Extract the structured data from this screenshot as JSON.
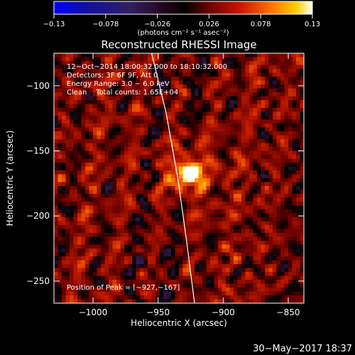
{
  "chart_data": {
    "type": "heatmap",
    "title": "Reconstructed RHESSI Image",
    "xlabel": "Heliocentric X (arcsec)",
    "ylabel": "Heliocentric Y (arcsec)",
    "xlim": [
      -1030,
      -838
    ],
    "ylim": [
      -267,
      -75
    ],
    "x_ticks": [
      -1000,
      -950,
      -900,
      -850
    ],
    "x_tick_labels": [
      "−1000",
      "−950",
      "−900",
      "−850"
    ],
    "y_ticks": [
      -100,
      -150,
      -200,
      -250
    ],
    "y_tick_labels": [
      "−100",
      "−150",
      "−200",
      "−250"
    ],
    "colorbar": {
      "min": -0.13,
      "max": 0.13,
      "ticks": [
        -0.13,
        -0.078,
        -0.026,
        0.026,
        0.078,
        0.13
      ],
      "tick_labels": [
        "−0.13",
        "−0.078",
        "−0.026",
        "0.026",
        "0.078",
        "0.13"
      ],
      "label": "(photons cm⁻² s⁻¹ asec⁻²)",
      "colormap": "rainbow-blue-to-hot"
    },
    "annotations": [
      "12−Oct−2014 18:00:32.000 to 18:10:32.000",
      "Detectors: 3F 6F 9F, Att 0",
      "Energy Range: 3.0 − 6.0 keV",
      "Clean    Total counts: 1.65E+04"
    ],
    "peak_text": "Position of Peak = [−927,−167]",
    "peak": {
      "x": -927,
      "y": -167,
      "value": 0.13
    },
    "limb_curve": [
      [
        -955,
        -75
      ],
      [
        -944,
        -120
      ],
      [
        -935,
        -170
      ],
      [
        -928,
        -220
      ],
      [
        -922,
        -267
      ]
    ],
    "grid": false
  },
  "footer": {
    "date": "30−May−2017 18:37"
  },
  "colors": {
    "background": "#000000",
    "foreground": "#ffffff"
  }
}
